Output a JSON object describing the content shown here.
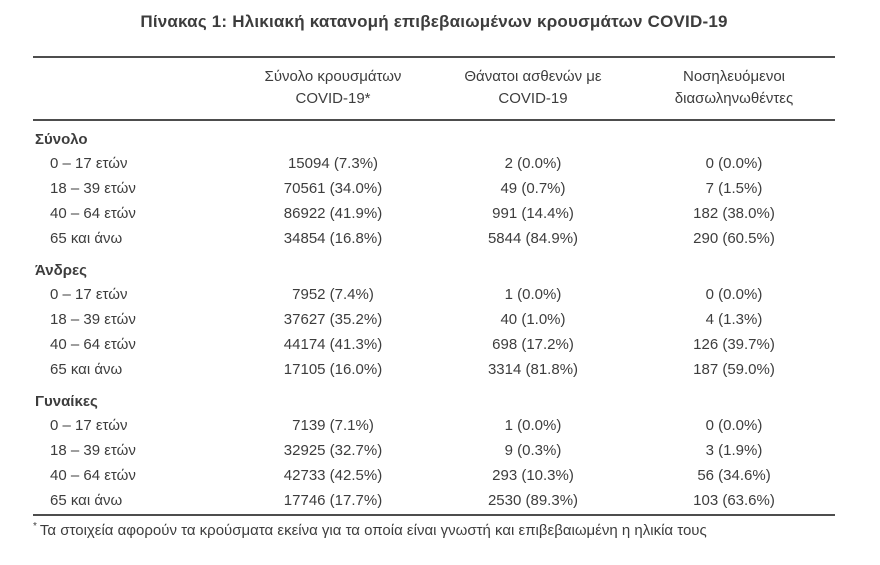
{
  "title": "Πίνακας 1: Ηλικιακή κατανομή επιβεβαιωμένων κρουσμάτων COVID-19",
  "table": {
    "columns": [
      {
        "line1": "Σύνολο κρουσμάτων",
        "line2": "COVID-19*"
      },
      {
        "line1": "Θάνατοι ασθενών με",
        "line2": "COVID-19"
      },
      {
        "line1": "Νοσηλευόμενοι",
        "line2": "διασωληνωθέντες"
      }
    ],
    "sections": [
      {
        "title": "Σύνολο",
        "rows": [
          {
            "label": "0 – 17 ετών",
            "cases": "15094 (7.3%)",
            "deaths": "2 (0.0%)",
            "intubated": "0 (0.0%)"
          },
          {
            "label": "18 – 39 ετών",
            "cases": "70561 (34.0%)",
            "deaths": "49 (0.7%)",
            "intubated": "7 (1.5%)"
          },
          {
            "label": "40 – 64 ετών",
            "cases": "86922 (41.9%)",
            "deaths": "991 (14.4%)",
            "intubated": "182 (38.0%)"
          },
          {
            "label": "65 και άνω",
            "cases": "34854 (16.8%)",
            "deaths": "5844 (84.9%)",
            "intubated": "290 (60.5%)"
          }
        ]
      },
      {
        "title": "Άνδρες",
        "rows": [
          {
            "label": "0 – 17 ετών",
            "cases": "7952 (7.4%)",
            "deaths": "1 (0.0%)",
            "intubated": "0 (0.0%)"
          },
          {
            "label": "18 – 39 ετών",
            "cases": "37627 (35.2%)",
            "deaths": "40 (1.0%)",
            "intubated": "4 (1.3%)"
          },
          {
            "label": "40 – 64 ετών",
            "cases": "44174 (41.3%)",
            "deaths": "698 (17.2%)",
            "intubated": "126 (39.7%)"
          },
          {
            "label": "65 και άνω",
            "cases": "17105 (16.0%)",
            "deaths": "3314 (81.8%)",
            "intubated": "187 (59.0%)"
          }
        ]
      },
      {
        "title": "Γυναίκες",
        "rows": [
          {
            "label": "0 – 17 ετών",
            "cases": "7139 (7.1%)",
            "deaths": "1 (0.0%)",
            "intubated": "0 (0.0%)"
          },
          {
            "label": "18 – 39 ετών",
            "cases": "32925 (32.7%)",
            "deaths": "9 (0.3%)",
            "intubated": "3 (1.9%)"
          },
          {
            "label": "40 – 64 ετών",
            "cases": "42733 (42.5%)",
            "deaths": "293 (10.3%)",
            "intubated": "56 (34.6%)"
          },
          {
            "label": "65 και άνω",
            "cases": "17746 (17.7%)",
            "deaths": "2530 (89.3%)",
            "intubated": "103 (63.6%)"
          }
        ]
      }
    ]
  },
  "footnote": {
    "marker": "*",
    "text": "Τα στοιχεία αφορούν τα κρούσματα εκείνα για τα οποία είναι γνωστή και επιβεβαιωμένη η ηλικία τους"
  },
  "colors": {
    "text": "#3d3d3d",
    "border": "#4d4d4d",
    "background": "#ffffff"
  }
}
